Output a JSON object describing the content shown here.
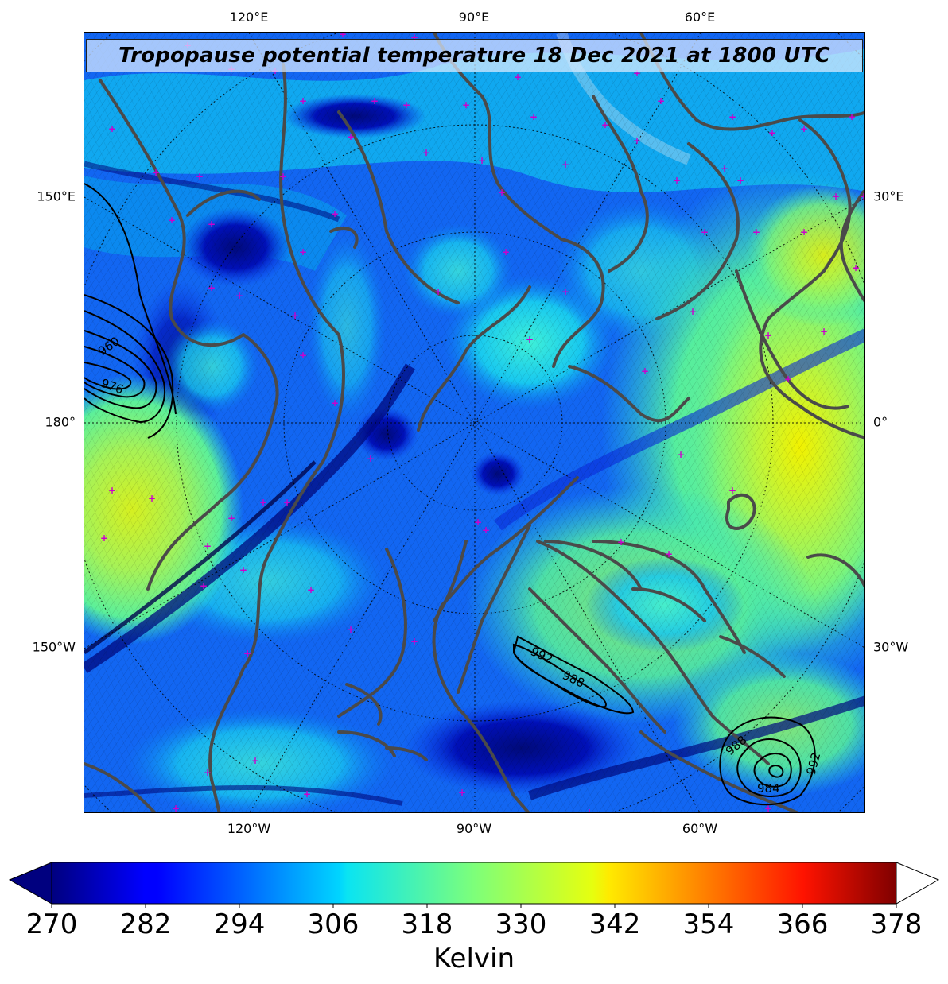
{
  "map": {
    "title": "Tropopause potential temperature 18 Dec 2021 at 1800 UTC",
    "lon_labels_top": [
      "120°E",
      "90°E",
      "60°E"
    ],
    "lon_labels_bottom": [
      "120°W",
      "90°W",
      "60°W"
    ],
    "lon_labels_left": [
      "150°E",
      "180°",
      "150°W"
    ],
    "lon_labels_right": [
      "30°E",
      "0°",
      "30°W"
    ],
    "projection": "north-polar-stereographic",
    "field": "tropopause potential temperature",
    "pressure_contours": [
      {
        "label": "960",
        "region": "west-pacific-low"
      },
      {
        "label": "976",
        "region": "west-pacific-low"
      },
      {
        "label": "992",
        "region": "labrador-sea-low"
      },
      {
        "label": "988",
        "region": "labrador-sea-low"
      },
      {
        "label": "988",
        "region": "north-atlantic-low"
      },
      {
        "label": "984",
        "region": "north-atlantic-low"
      },
      {
        "label": "992",
        "region": "north-atlantic-low"
      }
    ]
  },
  "colorbar": {
    "tick_labels": [
      "270",
      "282",
      "294",
      "306",
      "318",
      "330",
      "342",
      "354",
      "366",
      "378"
    ],
    "unit": "Kelvin",
    "min": 270,
    "max": 378,
    "colormap": "jet",
    "extend": "both"
  },
  "colors": {
    "coastline": "#4a4a4a",
    "marker": "#cc00cc",
    "contour": "#000000"
  }
}
